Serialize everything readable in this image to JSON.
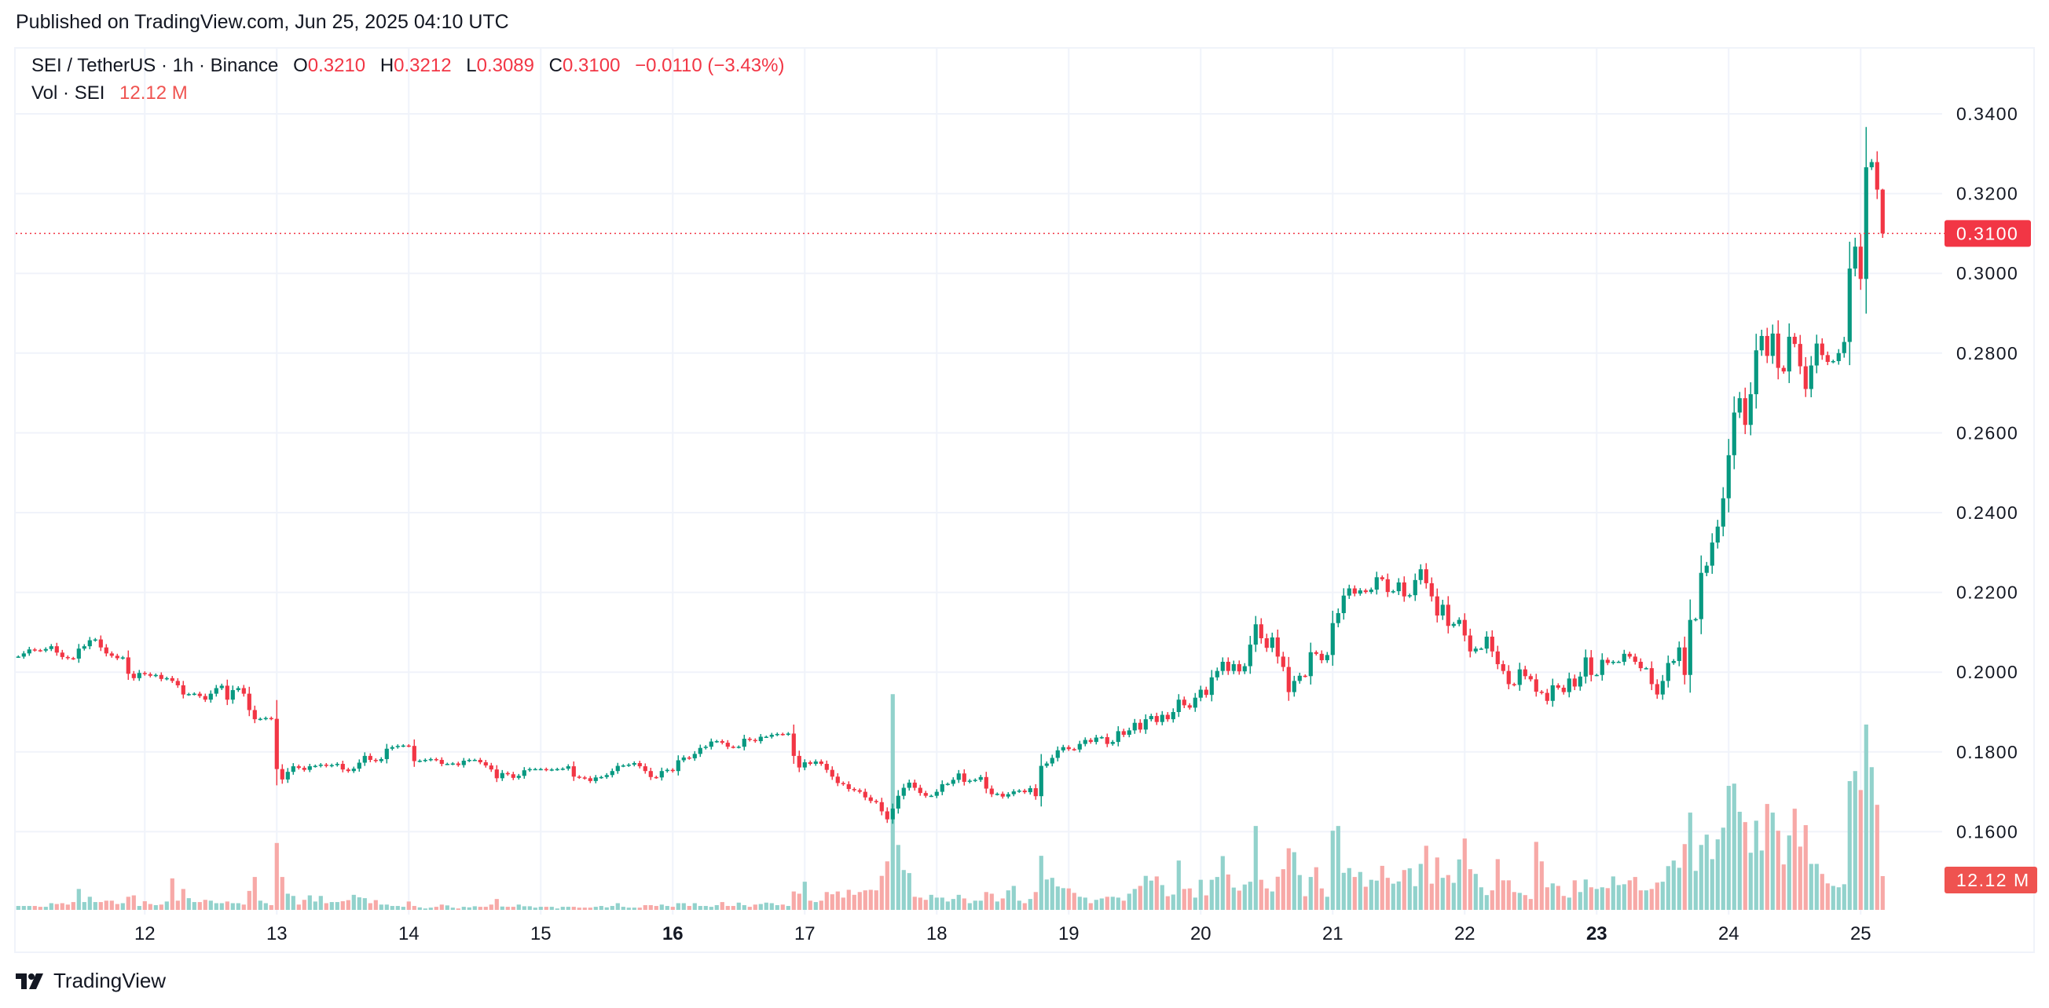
{
  "published": "Published on TradingView.com, Jun 25, 2025 04:10 UTC",
  "legend": {
    "symbol": "SEI / TetherUS · 1h · Binance",
    "o_label": "O",
    "o": "0.3210",
    "h_label": "H",
    "h": "0.3212",
    "l_label": "L",
    "l": "0.3089",
    "c_label": "C",
    "c": "0.3100",
    "change": "−0.0110 (−3.43%)",
    "vol_label": "Vol · SEI",
    "vol": "12.12 M"
  },
  "logo": {
    "text": "TradingView",
    "mark": "TV"
  },
  "colors": {
    "up": "#089981",
    "down": "#f23645",
    "vol_up": "#92d2cc",
    "vol_down": "#f7a9a7",
    "grid": "#f0f3fa",
    "price_line": "#f23645"
  },
  "chart_data": {
    "type": "candlestick",
    "interval": "1h",
    "first_bar": "2025-06-11 01:00",
    "y_ticks": [
      "0.3400",
      "0.3200",
      "0.3000",
      "0.2800",
      "0.2600",
      "0.2400",
      "0.2200",
      "0.2000",
      "0.1800",
      "0.1600"
    ],
    "ylim": [
      0.154,
      0.345
    ],
    "x_ticks": [
      {
        "label": "12",
        "day": 12
      },
      {
        "label": "13",
        "day": 13
      },
      {
        "label": "14",
        "day": 14
      },
      {
        "label": "15",
        "day": 15
      },
      {
        "label": "16",
        "day": 16,
        "bold": true
      },
      {
        "label": "17",
        "day": 17
      },
      {
        "label": "18",
        "day": 18
      },
      {
        "label": "19",
        "day": 19
      },
      {
        "label": "20",
        "day": 20
      },
      {
        "label": "21",
        "day": 21
      },
      {
        "label": "22",
        "day": 22
      },
      {
        "label": "23",
        "day": 23,
        "bold": true
      },
      {
        "label": "24",
        "day": 24
      },
      {
        "label": "25",
        "day": 25
      }
    ],
    "last_price_label": "0.3100",
    "last_price": 0.31,
    "last_volume_label": "12.12 M",
    "last_bar": {
      "open": 0.321,
      "high": 0.3212,
      "low": 0.3089,
      "close": 0.31
    },
    "close": [
      0.2039,
      0.2047,
      0.2057,
      0.2055,
      0.2054,
      0.2058,
      0.2065,
      0.2049,
      0.2038,
      0.2035,
      0.2034,
      0.2059,
      0.2065,
      0.208,
      0.2082,
      0.2062,
      0.2047,
      0.2041,
      0.2035,
      0.2037,
      0.1996,
      0.1985,
      0.1998,
      0.1995,
      0.1991,
      0.1993,
      0.1983,
      0.1985,
      0.1978,
      0.1967,
      0.1944,
      0.1945,
      0.1946,
      0.194,
      0.1931,
      0.1946,
      0.196,
      0.1966,
      0.1931,
      0.1955,
      0.196,
      0.1946,
      0.1905,
      0.1882,
      0.1883,
      0.1885,
      0.1883,
      0.1757,
      0.1731,
      0.175,
      0.1764,
      0.176,
      0.1755,
      0.1764,
      0.1765,
      0.1768,
      0.1765,
      0.1767,
      0.177,
      0.1756,
      0.1752,
      0.1758,
      0.1773,
      0.179,
      0.178,
      0.1777,
      0.1782,
      0.1808,
      0.1812,
      0.1815,
      0.1816,
      0.1815,
      0.1777,
      0.1778,
      0.178,
      0.1782,
      0.178,
      0.177,
      0.177,
      0.1771,
      0.1767,
      0.1778,
      0.178,
      0.178,
      0.1774,
      0.1766,
      0.1756,
      0.1734,
      0.1747,
      0.1744,
      0.1735,
      0.174,
      0.1754,
      0.1757,
      0.1757,
      0.1757,
      0.1755,
      0.1756,
      0.1757,
      0.1758,
      0.1764,
      0.1738,
      0.1736,
      0.1734,
      0.1727,
      0.1736,
      0.1737,
      0.1742,
      0.1752,
      0.1765,
      0.1766,
      0.1768,
      0.1772,
      0.1764,
      0.1752,
      0.1737,
      0.1736,
      0.1752,
      0.1755,
      0.1752,
      0.1779,
      0.1786,
      0.1784,
      0.1795,
      0.181,
      0.1813,
      0.1826,
      0.1827,
      0.1823,
      0.1813,
      0.1812,
      0.1813,
      0.1833,
      0.183,
      0.1827,
      0.1838,
      0.1838,
      0.1843,
      0.1845,
      0.1844,
      0.1846,
      0.179,
      0.1761,
      0.1774,
      0.177,
      0.1776,
      0.177,
      0.1755,
      0.1738,
      0.1722,
      0.1719,
      0.1707,
      0.1704,
      0.17,
      0.1686,
      0.1677,
      0.1674,
      0.1651,
      0.1631,
      0.1658,
      0.169,
      0.171,
      0.1723,
      0.171,
      0.1697,
      0.169,
      0.169,
      0.17,
      0.1719,
      0.172,
      0.173,
      0.1746,
      0.1725,
      0.1728,
      0.173,
      0.1737,
      0.1708,
      0.1694,
      0.1695,
      0.1688,
      0.1694,
      0.1701,
      0.1703,
      0.1699,
      0.1709,
      0.1689,
      0.1765,
      0.1771,
      0.1785,
      0.1804,
      0.1812,
      0.1807,
      0.1806,
      0.182,
      0.183,
      0.1825,
      0.1836,
      0.1837,
      0.182,
      0.1825,
      0.1852,
      0.1843,
      0.1854,
      0.1873,
      0.1856,
      0.1882,
      0.189,
      0.1875,
      0.1893,
      0.1882,
      0.19,
      0.1931,
      0.1917,
      0.1911,
      0.1936,
      0.1956,
      0.1943,
      0.1987,
      0.2003,
      0.2026,
      0.2003,
      0.202,
      0.2002,
      0.2015,
      0.2069,
      0.212,
      0.2085,
      0.2061,
      0.2087,
      0.2039,
      0.2013,
      0.195,
      0.1978,
      0.1991,
      0.199,
      0.205,
      0.2046,
      0.203,
      0.2043,
      0.2123,
      0.2148,
      0.2192,
      0.221,
      0.2197,
      0.2205,
      0.2201,
      0.2207,
      0.2238,
      0.2233,
      0.2201,
      0.2203,
      0.2225,
      0.219,
      0.2193,
      0.2231,
      0.2258,
      0.2223,
      0.219,
      0.2142,
      0.2169,
      0.2116,
      0.2121,
      0.2131,
      0.2092,
      0.2052,
      0.2059,
      0.2059,
      0.2089,
      0.2052,
      0.202,
      0.2003,
      0.197,
      0.1968,
      0.2007,
      0.199,
      0.1982,
      0.1951,
      0.1948,
      0.1928,
      0.1967,
      0.1961,
      0.195,
      0.1984,
      0.1964,
      0.1989,
      0.2037,
      0.1993,
      0.1993,
      0.2031,
      0.2023,
      0.2026,
      0.2026,
      0.2046,
      0.2039,
      0.2026,
      0.201,
      0.201,
      0.197,
      0.1944,
      0.1978,
      0.2023,
      0.2028,
      0.2062,
      0.1993,
      0.2131,
      0.2133,
      0.2249,
      0.2267,
      0.2325,
      0.2365,
      0.2436,
      0.2544,
      0.2651,
      0.2687,
      0.262,
      0.2697,
      0.2807,
      0.2843,
      0.2793,
      0.2849,
      0.2763,
      0.2754,
      0.2841,
      0.2823,
      0.2767,
      0.271,
      0.2769,
      0.2824,
      0.2795,
      0.2778,
      0.278,
      0.28,
      0.2828,
      0.3012,
      0.3067,
      0.2986,
      0.3266,
      0.3279,
      0.321,
      0.31
    ],
    "volume_millions": [
      1.4,
      1.4,
      1.4,
      1.4,
      1.1,
      1.1,
      2.4,
      2.1,
      2.4,
      1.9,
      2.8,
      7.5,
      2.8,
      4.7,
      2.8,
      2.8,
      3.3,
      3.3,
      2.1,
      2.4,
      4.7,
      5.2,
      1.4,
      3.1,
      2.1,
      1.7,
      1.9,
      3.0,
      11.3,
      3.3,
      7.5,
      4.2,
      2.8,
      2.8,
      3.6,
      3.3,
      2.4,
      2.4,
      3.0,
      2.4,
      2.4,
      1.9,
      6.8,
      11.8,
      3.3,
      2.4,
      1.7,
      24.0,
      11.8,
      5.8,
      5.0,
      1.9,
      3.6,
      5.2,
      3.0,
      5.0,
      2.4,
      2.8,
      2.8,
      3.1,
      3.5,
      5.4,
      4.5,
      4.2,
      2.4,
      3.5,
      1.9,
      1.9,
      1.4,
      1.4,
      1.1,
      3.0,
      1.4,
      0.9,
      0.5,
      0.8,
      1.1,
      1.9,
      1.6,
      0.8,
      0.5,
      1.1,
      0.9,
      1.3,
      1.1,
      1.1,
      1.9,
      3.9,
      1.2,
      1.1,
      1.1,
      1.9,
      1.3,
      1.3,
      0.8,
      1.1,
      1.1,
      1.1,
      0.5,
      1.1,
      1.1,
      1.1,
      0.8,
      0.8,
      0.8,
      1.1,
      1.4,
      0.9,
      1.4,
      2.4,
      1.1,
      0.8,
      0.8,
      0.8,
      1.7,
      1.7,
      1.4,
      1.9,
      1.4,
      1.1,
      2.4,
      2.4,
      1.4,
      2.4,
      1.4,
      1.4,
      1.1,
      1.7,
      2.8,
      1.4,
      1.4,
      2.6,
      1.7,
      1.1,
      1.9,
      2.1,
      2.6,
      2.4,
      1.7,
      1.9,
      1.4,
      6.6,
      5.8,
      10.1,
      3.3,
      2.8,
      3.3,
      6.4,
      5.6,
      6.6,
      4.4,
      7.2,
      5.4,
      6.4,
      7.0,
      7.2,
      7.0,
      12.2,
      17.4,
      77.4,
      23.3,
      14.3,
      13.2,
      4.7,
      4.4,
      3.6,
      5.4,
      4.4,
      4.4,
      3.0,
      3.9,
      5.4,
      4.1,
      2.4,
      3.3,
      3.3,
      6.4,
      5.8,
      3.0,
      4.1,
      7.0,
      8.6,
      3.3,
      2.4,
      3.9,
      6.4,
      19.4,
      10.9,
      11.5,
      8.4,
      7.8,
      7.7,
      6.1,
      4.7,
      4.4,
      2.4,
      3.6,
      4.1,
      4.7,
      4.7,
      4.4,
      3.3,
      5.8,
      7.5,
      8.6,
      12.2,
      10.5,
      12.0,
      8.9,
      4.9,
      5.5,
      17.7,
      7.5,
      7.7,
      4.4,
      10.8,
      5.2,
      10.8,
      11.8,
      19.3,
      12.7,
      8.0,
      6.9,
      9.1,
      10.1,
      30.1,
      10.8,
      7.7,
      6.6,
      11.9,
      14.6,
      22.1,
      20.7,
      12.5,
      4.9,
      11.8,
      15.3,
      7.7,
      4.7,
      28.4,
      30.1,
      13.3,
      15.0,
      11.8,
      13.6,
      8.3,
      10.8,
      10.5,
      15.8,
      11.5,
      9.4,
      10.2,
      14.3,
      14.9,
      8.5,
      16.5,
      23.0,
      9.4,
      18.8,
      11.5,
      12.5,
      9.7,
      18.1,
      25.6,
      14.6,
      12.9,
      8.1,
      5.3,
      7.0,
      18.2,
      10.6,
      10.6,
      6.4,
      6.1,
      5.3,
      3.9,
      24.4,
      17.4,
      8.1,
      9.5,
      8.6,
      5.0,
      4.4,
      10.6,
      6.4,
      10.9,
      8.1,
      7.5,
      8.1,
      7.8,
      12.0,
      8.9,
      9.2,
      10.6,
      11.8,
      7.0,
      7.0,
      7.5,
      9.8,
      10.1,
      15.7,
      17.7,
      15.1,
      23.6,
      34.9,
      14.0,
      23.3,
      27.0,
      18.2,
      25.3,
      29.5,
      44.5,
      45.3,
      35.2,
      31.5,
      20.5,
      32.0,
      21.3,
      38.0,
      34.9,
      28.4,
      16.3,
      26.7,
      36.3,
      22.7,
      30.4,
      16.5,
      16.5,
      12.9,
      9.5,
      8.6,
      8.1,
      9.2,
      46.2,
      49.8,
      43.0,
      66.5,
      51.2,
      37.7,
      12.12
    ]
  }
}
